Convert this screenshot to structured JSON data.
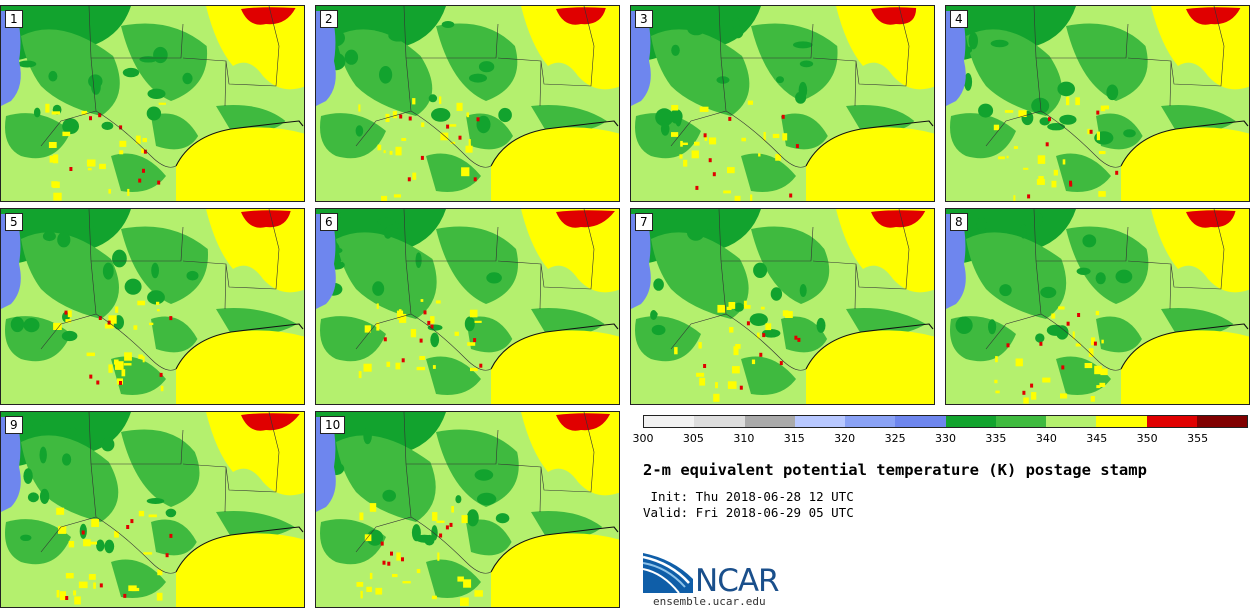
{
  "panels": [
    {
      "label": "1"
    },
    {
      "label": "2"
    },
    {
      "label": "3"
    },
    {
      "label": "4"
    },
    {
      "label": "5"
    },
    {
      "label": "6"
    },
    {
      "label": "7"
    },
    {
      "label": "8"
    },
    {
      "label": "9"
    },
    {
      "label": "10"
    }
  ],
  "colorbar": {
    "ticks": [
      "300",
      "305",
      "310",
      "315",
      "320",
      "325",
      "330",
      "335",
      "340",
      "345",
      "350",
      "355"
    ],
    "colors": [
      "#f2f2f2",
      "#dddddd",
      "#aaaaaa",
      "#b8c8ff",
      "#8aa2f5",
      "#6e86ee",
      "#12a32e",
      "#3fba3f",
      "#b4f06e",
      "#ffff00",
      "#e00000",
      "#800000"
    ]
  },
  "title": "2-m equivalent potential temperature (K) postage stamp",
  "init": " Init: Thu 2018-06-28 12 UTC",
  "valid": "Valid: Fri 2018-06-29 05 UTC",
  "logo_text": "NCAR",
  "url": "ensemble.ucar.edu"
}
